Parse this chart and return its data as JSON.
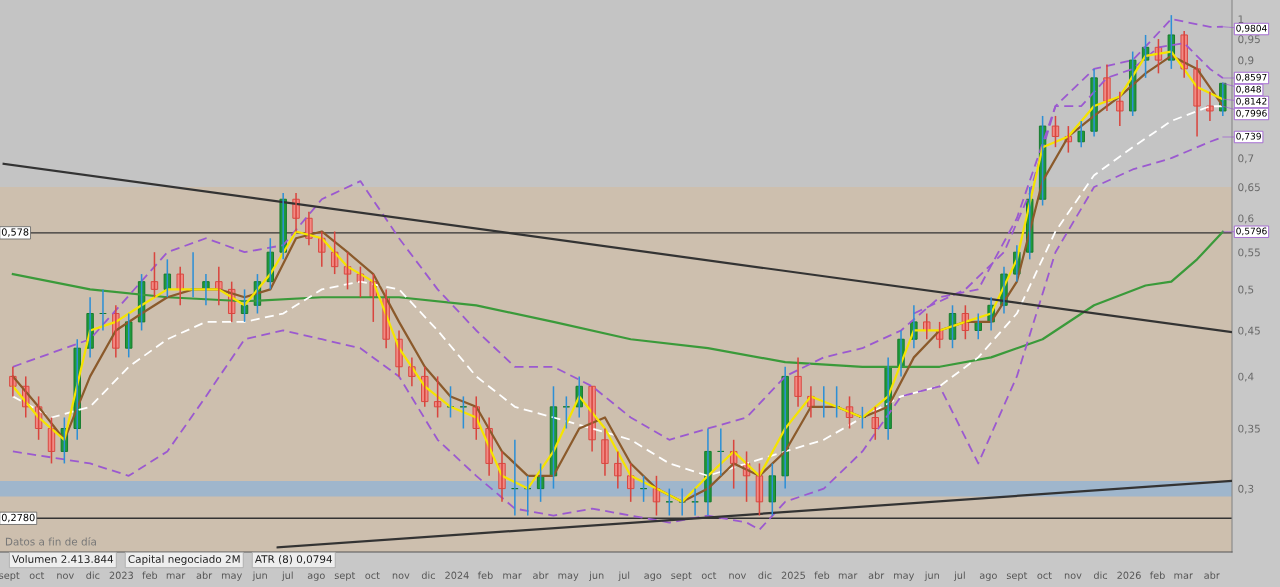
{
  "chart_data": {
    "type": "candlestick",
    "log": "y",
    "xlim": [
      "2022-08-22",
      "2026-04-23"
    ],
    "ylim": [
      0.255,
      1.05
    ],
    "xticks": [
      {
        "value": "2022-09-01",
        "label": "sept"
      },
      {
        "value": "2022-10-01",
        "label": "oct"
      },
      {
        "value": "2022-11-01",
        "label": "nov"
      },
      {
        "value": "2022-12-01",
        "label": "dic"
      },
      {
        "value": "2023-01-01",
        "label": "2023"
      },
      {
        "value": "2023-02-01",
        "label": "feb"
      },
      {
        "value": "2023-03-01",
        "label": "mar"
      },
      {
        "value": "2023-04-01",
        "label": "abr"
      },
      {
        "value": "2023-05-01",
        "label": "may"
      },
      {
        "value": "2023-06-01",
        "label": "jun"
      },
      {
        "value": "2023-07-01",
        "label": "jul"
      },
      {
        "value": "2023-08-01",
        "label": "ago"
      },
      {
        "value": "2023-09-01",
        "label": "sept"
      },
      {
        "value": "2023-10-01",
        "label": "oct"
      },
      {
        "value": "2023-11-01",
        "label": "nov"
      },
      {
        "value": "2023-12-01",
        "label": "dic"
      },
      {
        "value": "2024-01-01",
        "label": "2024"
      },
      {
        "value": "2024-02-01",
        "label": "feb"
      },
      {
        "value": "2024-03-01",
        "label": "mar"
      },
      {
        "value": "2024-04-01",
        "label": "abr"
      },
      {
        "value": "2024-05-01",
        "label": "may"
      },
      {
        "value": "2024-06-01",
        "label": "jun"
      },
      {
        "value": "2024-07-01",
        "label": "jul"
      },
      {
        "value": "2024-08-01",
        "label": "ago"
      },
      {
        "value": "2024-09-01",
        "label": "sept"
      },
      {
        "value": "2024-10-01",
        "label": "oct"
      },
      {
        "value": "2024-11-01",
        "label": "nov"
      },
      {
        "value": "2024-12-01",
        "label": "dic"
      },
      {
        "value": "2025-01-01",
        "label": "2025"
      },
      {
        "value": "2025-02-01",
        "label": "feb"
      },
      {
        "value": "2025-03-01",
        "label": "mar"
      },
      {
        "value": "2025-04-01",
        "label": "abr"
      },
      {
        "value": "2025-05-01",
        "label": "may"
      },
      {
        "value": "2025-06-01",
        "label": "jun"
      },
      {
        "value": "2025-07-01",
        "label": "jul"
      },
      {
        "value": "2025-08-01",
        "label": "ago"
      },
      {
        "value": "2025-09-01",
        "label": "sept"
      },
      {
        "value": "2025-10-01",
        "label": "oct"
      },
      {
        "value": "2025-11-01",
        "label": "nov"
      },
      {
        "value": "2025-12-01",
        "label": "dic"
      },
      {
        "value": "2026-01-01",
        "label": "2026"
      },
      {
        "value": "2026-02-01",
        "label": "feb"
      },
      {
        "value": "2026-03-01",
        "label": "mar"
      },
      {
        "value": "2026-04-01",
        "label": "abr"
      }
    ],
    "yticks": [
      {
        "value": 0.3,
        "label": "0,3"
      },
      {
        "value": 0.35,
        "label": "0,35"
      },
      {
        "value": 0.4,
        "label": "0,4"
      },
      {
        "value": 0.45,
        "label": "0,45"
      },
      {
        "value": 0.5,
        "label": "0,5"
      },
      {
        "value": 0.55,
        "label": "0,55"
      },
      {
        "value": 0.6,
        "label": "0,6"
      },
      {
        "value": 0.65,
        "label": "0,65"
      },
      {
        "value": 0.7,
        "label": "0,7"
      },
      {
        "value": 0.9,
        "label": "0,9"
      },
      {
        "value": 0.95,
        "label": "0,95"
      },
      {
        "value": 1,
        "label": "1"
      }
    ],
    "x": [
      "2022-09-05",
      "2022-09-19",
      "2022-10-03",
      "2022-10-17",
      "2022-10-31",
      "2022-11-14",
      "2022-11-28",
      "2022-12-12",
      "2022-12-26",
      "2023-01-09",
      "2023-01-23",
      "2023-02-06",
      "2023-02-20",
      "2023-03-06",
      "2023-03-20",
      "2023-04-03",
      "2023-04-17",
      "2023-05-01",
      "2023-05-15",
      "2023-05-29",
      "2023-06-12",
      "2023-06-26",
      "2023-07-10",
      "2023-07-24",
      "2023-08-07",
      "2023-08-21",
      "2023-09-04",
      "2023-09-18",
      "2023-10-02",
      "2023-10-16",
      "2023-10-30",
      "2023-11-13",
      "2023-11-27",
      "2023-12-11",
      "2023-12-25",
      "2024-01-08",
      "2024-01-22",
      "2024-02-05",
      "2024-02-19",
      "2024-03-04",
      "2024-03-18",
      "2024-04-01",
      "2024-04-15",
      "2024-04-29",
      "2024-05-13",
      "2024-05-27",
      "2024-06-10",
      "2024-06-24",
      "2024-07-08",
      "2024-07-22",
      "2024-08-05",
      "2024-08-19",
      "2024-09-02",
      "2024-09-16",
      "2024-09-30",
      "2024-10-14",
      "2024-10-28",
      "2024-11-11",
      "2024-11-25",
      "2024-12-09",
      "2024-12-23",
      "2025-01-06",
      "2025-01-20",
      "2025-02-03",
      "2025-02-17",
      "2025-03-03",
      "2025-03-17",
      "2025-03-31",
      "2025-04-14",
      "2025-04-28",
      "2025-05-12",
      "2025-05-26",
      "2025-06-09",
      "2025-06-23",
      "2025-07-07",
      "2025-07-21",
      "2025-08-04",
      "2025-08-18",
      "2025-09-01",
      "2025-09-15",
      "2025-09-29",
      "2025-10-13",
      "2025-10-27",
      "2025-11-10",
      "2025-11-24",
      "2025-12-08",
      "2025-12-22",
      "2026-01-05",
      "2026-01-19",
      "2026-02-02",
      "2026-02-16",
      "2026-03-02",
      "2026-03-16",
      "2026-03-30",
      "2026-04-13"
    ],
    "ohlc": [
      [
        0.4,
        0.41,
        0.38,
        0.39
      ],
      [
        0.39,
        0.4,
        0.36,
        0.37
      ],
      [
        0.37,
        0.38,
        0.34,
        0.35
      ],
      [
        0.35,
        0.36,
        0.32,
        0.33
      ],
      [
        0.33,
        0.36,
        0.32,
        0.35
      ],
      [
        0.35,
        0.44,
        0.34,
        0.43
      ],
      [
        0.43,
        0.49,
        0.42,
        0.47
      ],
      [
        0.47,
        0.5,
        0.45,
        0.47
      ],
      [
        0.47,
        0.48,
        0.42,
        0.43
      ],
      [
        0.43,
        0.47,
        0.42,
        0.46
      ],
      [
        0.46,
        0.52,
        0.45,
        0.51
      ],
      [
        0.51,
        0.55,
        0.49,
        0.5
      ],
      [
        0.5,
        0.54,
        0.49,
        0.52
      ],
      [
        0.52,
        0.53,
        0.48,
        0.5
      ],
      [
        0.5,
        0.55,
        0.49,
        0.5
      ],
      [
        0.5,
        0.52,
        0.48,
        0.51
      ],
      [
        0.51,
        0.53,
        0.48,
        0.5
      ],
      [
        0.5,
        0.51,
        0.46,
        0.47
      ],
      [
        0.47,
        0.5,
        0.46,
        0.48
      ],
      [
        0.48,
        0.52,
        0.47,
        0.51
      ],
      [
        0.51,
        0.57,
        0.5,
        0.55
      ],
      [
        0.55,
        0.64,
        0.54,
        0.63
      ],
      [
        0.63,
        0.64,
        0.58,
        0.6
      ],
      [
        0.6,
        0.61,
        0.56,
        0.57
      ],
      [
        0.57,
        0.58,
        0.53,
        0.55
      ],
      [
        0.55,
        0.58,
        0.52,
        0.53
      ],
      [
        0.53,
        0.55,
        0.5,
        0.52
      ],
      [
        0.52,
        0.53,
        0.49,
        0.51
      ],
      [
        0.51,
        0.52,
        0.46,
        0.49
      ],
      [
        0.49,
        0.5,
        0.43,
        0.44
      ],
      [
        0.44,
        0.45,
        0.4,
        0.41
      ],
      [
        0.41,
        0.42,
        0.39,
        0.4
      ],
      [
        0.4,
        0.41,
        0.37,
        0.375
      ],
      [
        0.375,
        0.4,
        0.36,
        0.37
      ],
      [
        0.37,
        0.39,
        0.36,
        0.37
      ],
      [
        0.37,
        0.38,
        0.35,
        0.37
      ],
      [
        0.37,
        0.38,
        0.34,
        0.35
      ],
      [
        0.35,
        0.36,
        0.31,
        0.32
      ],
      [
        0.32,
        0.33,
        0.29,
        0.3
      ],
      [
        0.3,
        0.34,
        0.28,
        0.3
      ],
      [
        0.3,
        0.31,
        0.28,
        0.3
      ],
      [
        0.3,
        0.32,
        0.29,
        0.31
      ],
      [
        0.31,
        0.39,
        0.3,
        0.37
      ],
      [
        0.37,
        0.38,
        0.35,
        0.37
      ],
      [
        0.37,
        0.4,
        0.36,
        0.39
      ],
      [
        0.39,
        0.39,
        0.33,
        0.34
      ],
      [
        0.34,
        0.35,
        0.31,
        0.32
      ],
      [
        0.32,
        0.33,
        0.3,
        0.31
      ],
      [
        0.31,
        0.32,
        0.29,
        0.3
      ],
      [
        0.3,
        0.31,
        0.29,
        0.3
      ],
      [
        0.3,
        0.31,
        0.28,
        0.29
      ],
      [
        0.29,
        0.3,
        0.28,
        0.29
      ],
      [
        0.29,
        0.3,
        0.28,
        0.29
      ],
      [
        0.29,
        0.3,
        0.28,
        0.29
      ],
      [
        0.29,
        0.35,
        0.28,
        0.33
      ],
      [
        0.33,
        0.35,
        0.31,
        0.33
      ],
      [
        0.33,
        0.34,
        0.3,
        0.32
      ],
      [
        0.32,
        0.33,
        0.29,
        0.31
      ],
      [
        0.31,
        0.32,
        0.28,
        0.29
      ],
      [
        0.29,
        0.32,
        0.28,
        0.31
      ],
      [
        0.31,
        0.41,
        0.3,
        0.4
      ],
      [
        0.4,
        0.42,
        0.37,
        0.38
      ],
      [
        0.38,
        0.39,
        0.36,
        0.37
      ],
      [
        0.37,
        0.39,
        0.36,
        0.37
      ],
      [
        0.37,
        0.39,
        0.36,
        0.37
      ],
      [
        0.37,
        0.38,
        0.35,
        0.36
      ],
      [
        0.36,
        0.37,
        0.35,
        0.36
      ],
      [
        0.36,
        0.37,
        0.34,
        0.35
      ],
      [
        0.35,
        0.42,
        0.34,
        0.41
      ],
      [
        0.41,
        0.45,
        0.4,
        0.44
      ],
      [
        0.44,
        0.48,
        0.43,
        0.46
      ],
      [
        0.46,
        0.47,
        0.44,
        0.45
      ],
      [
        0.45,
        0.46,
        0.43,
        0.44
      ],
      [
        0.44,
        0.48,
        0.43,
        0.47
      ],
      [
        0.47,
        0.48,
        0.44,
        0.45
      ],
      [
        0.45,
        0.47,
        0.44,
        0.46
      ],
      [
        0.46,
        0.49,
        0.45,
        0.48
      ],
      [
        0.48,
        0.53,
        0.47,
        0.52
      ],
      [
        0.52,
        0.56,
        0.51,
        0.55
      ],
      [
        0.55,
        0.65,
        0.54,
        0.63
      ],
      [
        0.63,
        0.78,
        0.62,
        0.76
      ],
      [
        0.76,
        0.78,
        0.72,
        0.74
      ],
      [
        0.74,
        0.76,
        0.71,
        0.73
      ],
      [
        0.73,
        0.77,
        0.72,
        0.75
      ],
      [
        0.75,
        0.88,
        0.74,
        0.86
      ],
      [
        0.86,
        0.89,
        0.79,
        0.81
      ],
      [
        0.81,
        0.83,
        0.76,
        0.79
      ],
      [
        0.79,
        0.92,
        0.78,
        0.9
      ],
      [
        0.9,
        0.96,
        0.86,
        0.93
      ],
      [
        0.93,
        0.95,
        0.87,
        0.9
      ],
      [
        0.9,
        1.01,
        0.88,
        0.96
      ],
      [
        0.96,
        0.97,
        0.86,
        0.88
      ],
      [
        0.88,
        0.9,
        0.74,
        0.8
      ],
      [
        0.8,
        0.83,
        0.77,
        0.79
      ],
      [
        0.79,
        0.85,
        0.78,
        0.848
      ]
    ],
    "series": [
      {
        "type": "line",
        "color": "#3a9a3a",
        "line_style": "solid",
        "x": [
          "2022-09-05",
          "2022-11-28",
          "2023-02-20",
          "2023-05-15",
          "2023-08-07",
          "2023-10-30",
          "2024-01-22",
          "2024-04-15",
          "2024-07-08",
          "2024-09-30",
          "2024-12-23",
          "2025-03-17",
          "2025-06-09",
          "2025-08-04",
          "2025-09-29",
          "2025-11-24",
          "2026-01-19",
          "2026-02-16",
          "2026-03-16",
          "2026-04-13"
        ],
        "values": [
          0.52,
          0.5,
          0.49,
          0.485,
          0.49,
          0.49,
          0.48,
          0.46,
          0.44,
          0.43,
          0.415,
          0.41,
          0.41,
          0.42,
          0.44,
          0.48,
          0.505,
          0.51,
          0.54,
          0.5796
        ]
      },
      {
        "type": "line",
        "color": "#ffffff",
        "line_style": "dashed",
        "x": [
          "2022-09-05",
          "2022-10-17",
          "2022-11-28",
          "2023-01-09",
          "2023-02-20",
          "2023-04-03",
          "2023-05-15",
          "2023-06-26",
          "2023-08-07",
          "2023-09-18",
          "2023-10-30",
          "2023-12-11",
          "2024-01-22",
          "2024-03-04",
          "2024-04-15",
          "2024-05-27",
          "2024-07-08",
          "2024-08-19",
          "2024-09-30",
          "2024-11-11",
          "2024-12-23",
          "2025-02-03",
          "2025-03-17",
          "2025-04-28",
          "2025-06-09",
          "2025-07-21",
          "2025-09-01",
          "2025-10-13",
          "2025-11-24",
          "2026-01-05",
          "2026-02-16",
          "2026-03-30",
          "2026-04-13"
        ],
        "values": [
          0.38,
          0.36,
          0.37,
          0.41,
          0.44,
          0.46,
          0.46,
          0.47,
          0.5,
          0.51,
          0.5,
          0.45,
          0.4,
          0.37,
          0.36,
          0.35,
          0.34,
          0.32,
          0.31,
          0.32,
          0.33,
          0.34,
          0.36,
          0.38,
          0.39,
          0.42,
          0.47,
          0.58,
          0.67,
          0.72,
          0.77,
          0.7996,
          0.7996
        ]
      },
      {
        "type": "line",
        "color": "#9b59d0",
        "line_style": "dashed",
        "x": [
          "2022-09-05",
          "2022-11-28",
          "2023-02-20",
          "2023-04-03",
          "2023-05-15",
          "2023-06-26",
          "2023-08-07",
          "2023-09-18",
          "2023-10-30",
          "2023-12-11",
          "2024-01-22",
          "2024-03-04",
          "2024-04-15",
          "2024-05-27",
          "2024-07-08",
          "2024-08-19",
          "2024-09-30",
          "2024-11-11",
          "2024-12-23",
          "2025-02-03",
          "2025-03-17",
          "2025-04-28",
          "2025-06-09",
          "2025-07-21",
          "2025-09-01",
          "2025-10-13",
          "2025-11-24",
          "2026-01-05",
          "2026-02-16",
          "2026-03-30",
          "2026-04-13"
        ],
        "values": [
          0.41,
          0.44,
          0.55,
          0.57,
          0.55,
          0.56,
          0.63,
          0.66,
          0.57,
          0.5,
          0.45,
          0.41,
          0.41,
          0.39,
          0.36,
          0.34,
          0.35,
          0.36,
          0.4,
          0.42,
          0.43,
          0.45,
          0.49,
          0.5,
          0.6,
          0.8,
          0.88,
          0.9,
          1.0,
          0.98,
          0.9804
        ]
      },
      {
        "type": "line",
        "color": "#9b59d0",
        "line_style": "dashed",
        "x": [
          "2022-09-05",
          "2022-11-28",
          "2023-01-09",
          "2023-02-20",
          "2023-04-03",
          "2023-05-15",
          "2023-06-26",
          "2023-08-07",
          "2023-09-18",
          "2023-10-30",
          "2023-12-11",
          "2024-01-22",
          "2024-03-04",
          "2024-04-15",
          "2024-05-27",
          "2024-07-08",
          "2024-08-19",
          "2024-09-30",
          "2024-11-11",
          "2024-11-25",
          "2024-12-23",
          "2025-02-03",
          "2025-03-17",
          "2025-04-28",
          "2025-06-09",
          "2025-07-21",
          "2025-09-01",
          "2025-10-13",
          "2025-11-24",
          "2026-01-05",
          "2026-02-16",
          "2026-03-30",
          "2026-04-13"
        ],
        "values": [
          0.33,
          0.32,
          0.31,
          0.33,
          0.38,
          0.44,
          0.45,
          0.44,
          0.43,
          0.4,
          0.34,
          0.31,
          0.285,
          0.28,
          0.285,
          0.28,
          0.275,
          0.28,
          0.275,
          0.27,
          0.29,
          0.3,
          0.33,
          0.38,
          0.39,
          0.32,
          0.4,
          0.55,
          0.65,
          0.68,
          0.7,
          0.73,
          0.739
        ]
      },
      {
        "type": "line",
        "color": "#9b59d0",
        "line_style": "dashed",
        "x": [
          "2025-05-12",
          "2025-07-07",
          "2025-08-18",
          "2025-09-15",
          "2025-10-13",
          "2025-11-10",
          "2025-12-08",
          "2026-01-05",
          "2026-02-02",
          "2026-03-02",
          "2026-03-30",
          "2026-04-13"
        ],
        "values": [
          0.47,
          0.5,
          0.55,
          0.64,
          0.8,
          0.8,
          0.86,
          0.88,
          0.93,
          0.94,
          0.88,
          0.8597
        ]
      },
      {
        "type": "line",
        "color": "#8b5a2b",
        "line_style": "solid",
        "x": [
          "2022-09-05",
          "2022-10-03",
          "2022-10-31",
          "2022-11-28",
          "2022-12-26",
          "2023-01-23",
          "2023-02-20",
          "2023-03-20",
          "2023-04-17",
          "2023-05-15",
          "2023-06-12",
          "2023-07-10",
          "2023-08-07",
          "2023-09-04",
          "2023-10-02",
          "2023-10-30",
          "2023-11-27",
          "2023-12-25",
          "2024-01-22",
          "2024-02-19",
          "2024-03-18",
          "2024-04-15",
          "2024-05-13",
          "2024-06-10",
          "2024-07-08",
          "2024-08-05",
          "2024-09-02",
          "2024-09-30",
          "2024-10-28",
          "2024-11-25",
          "2024-12-23",
          "2025-01-20",
          "2025-02-17",
          "2025-03-17",
          "2025-04-14",
          "2025-05-12",
          "2025-06-09",
          "2025-07-07",
          "2025-08-04",
          "2025-09-01",
          "2025-09-29",
          "2025-10-27",
          "2025-11-24",
          "2025-12-22",
          "2026-01-19",
          "2026-02-16",
          "2026-03-16",
          "2026-04-13"
        ],
        "values": [
          0.4,
          0.37,
          0.34,
          0.4,
          0.45,
          0.47,
          0.49,
          0.5,
          0.5,
          0.49,
          0.5,
          0.57,
          0.58,
          0.55,
          0.52,
          0.46,
          0.41,
          0.38,
          0.37,
          0.33,
          0.31,
          0.31,
          0.35,
          0.36,
          0.32,
          0.3,
          0.29,
          0.3,
          0.32,
          0.31,
          0.33,
          0.37,
          0.37,
          0.36,
          0.37,
          0.42,
          0.45,
          0.46,
          0.46,
          0.51,
          0.66,
          0.74,
          0.78,
          0.82,
          0.87,
          0.91,
          0.88,
          0.8
        ]
      },
      {
        "type": "line",
        "color": "#f5e400",
        "line_style": "solid",
        "x": [
          "2022-09-05",
          "2022-10-03",
          "2022-10-31",
          "2022-11-28",
          "2022-12-26",
          "2023-01-23",
          "2023-02-20",
          "2023-03-20",
          "2023-04-17",
          "2023-05-15",
          "2023-06-12",
          "2023-07-10",
          "2023-08-07",
          "2023-09-04",
          "2023-10-02",
          "2023-10-30",
          "2023-11-27",
          "2023-12-25",
          "2024-01-22",
          "2024-02-19",
          "2024-03-18",
          "2024-04-15",
          "2024-05-13",
          "2024-06-10",
          "2024-07-08",
          "2024-08-05",
          "2024-09-02",
          "2024-09-30",
          "2024-10-28",
          "2024-11-25",
          "2024-12-23",
          "2025-01-20",
          "2025-02-17",
          "2025-03-17",
          "2025-04-14",
          "2025-05-12",
          "2025-06-09",
          "2025-07-07",
          "2025-08-04",
          "2025-09-01",
          "2025-09-29",
          "2025-10-27",
          "2025-11-24",
          "2025-12-22",
          "2026-01-19",
          "2026-02-16",
          "2026-03-16",
          "2026-04-13"
        ],
        "values": [
          0.39,
          0.36,
          0.34,
          0.45,
          0.46,
          0.48,
          0.5,
          0.5,
          0.5,
          0.48,
          0.52,
          0.58,
          0.57,
          0.53,
          0.51,
          0.43,
          0.39,
          0.37,
          0.36,
          0.31,
          0.3,
          0.33,
          0.38,
          0.35,
          0.31,
          0.3,
          0.29,
          0.31,
          0.33,
          0.31,
          0.35,
          0.38,
          0.37,
          0.36,
          0.38,
          0.45,
          0.45,
          0.46,
          0.47,
          0.54,
          0.72,
          0.74,
          0.8,
          0.82,
          0.91,
          0.92,
          0.84,
          0.8142
        ]
      },
      {
        "type": "line",
        "color": "#333333",
        "line_style": "solid",
        "x": [
          "2022-08-26",
          "2026-04-23"
        ],
        "values": [
          0.69,
          0.448
        ]
      },
      {
        "type": "line",
        "color": "#333333",
        "line_style": "solid",
        "x": [
          "2023-06-20",
          "2026-04-23"
        ],
        "values": [
          0.258,
          0.306
        ]
      }
    ],
    "ref_lines": [
      {
        "axis": "y",
        "value": 0.578,
        "label": "0,578",
        "color": "#333333"
      },
      {
        "axis": "y",
        "value": 0.278,
        "label": "0,2780",
        "color": "#333333"
      }
    ],
    "bands": [
      {
        "axis": "y",
        "from": 0.255,
        "to": 0.65,
        "color": "#cdbfae"
      },
      {
        "axis": "y",
        "from": 0.294,
        "to": 0.306,
        "color": "#9fb6cc"
      }
    ],
    "annotations": [
      "Datos a fin de día",
      "Volumen 2.413.844",
      "Capital negociado 2M",
      "ATR (8) 0,0794",
      {
        "text": "0,9804",
        "x": "2026-04-13",
        "y": 0.9804
      },
      {
        "text": "0,8597",
        "x": "2026-04-13",
        "y": 0.8597
      },
      {
        "text": "0,848",
        "x": "2026-04-13",
        "y": 0.848
      },
      {
        "text": "0,8142",
        "x": "2026-04-13",
        "y": 0.8142
      },
      {
        "text": "0,7996",
        "x": "2026-04-13",
        "y": 0.7996
      },
      {
        "text": "0,739",
        "x": "2026-04-13",
        "y": 0.739
      },
      {
        "text": "0,5796",
        "x": "2026-04-13",
        "y": 0.5796
      }
    ]
  }
}
